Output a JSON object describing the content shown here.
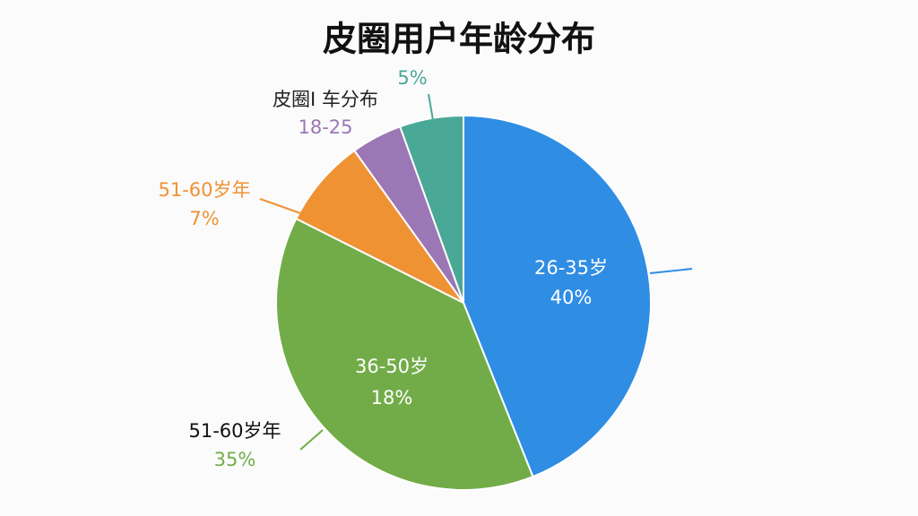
{
  "chart_data": {
    "type": "pie",
    "title": "皮圈用户年龄分布",
    "categories": [
      "26-35岁",
      "51-60岁年",
      "51-60岁年",
      "皮圈I 车分布",
      null
    ],
    "values": [
      40,
      35,
      7,
      4,
      5
    ],
    "value_labels": [
      "40%",
      "35%",
      "7%",
      null,
      "5%"
    ],
    "colors": [
      "#2f8de4",
      "#72ac48",
      "#ef9234",
      "#9b77b5",
      "#4aa897"
    ],
    "annotations": [
      "36-50岁",
      "18%",
      "18-25"
    ]
  }
}
